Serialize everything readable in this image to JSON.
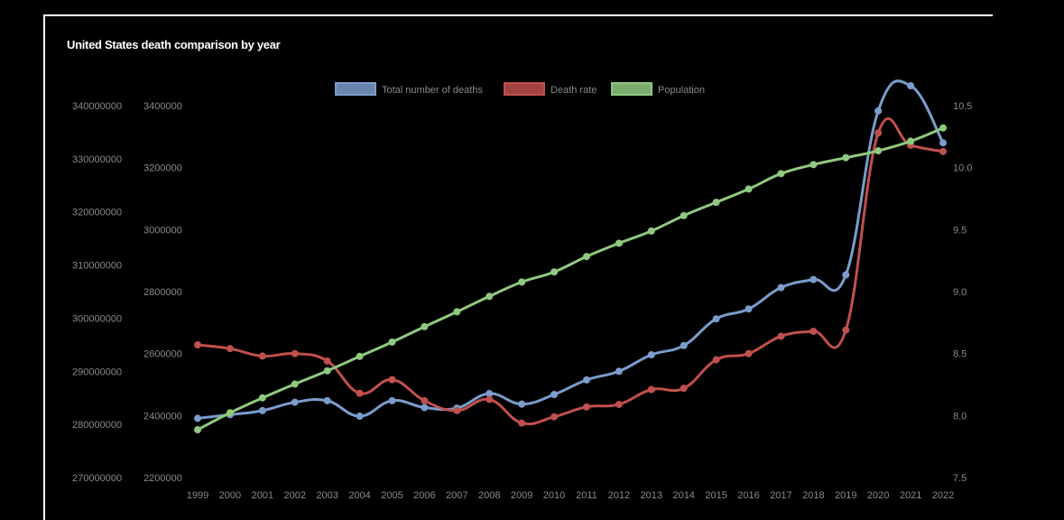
{
  "chart_data": {
    "type": "line",
    "title": "United States death comparison by year",
    "categories": [
      "1999",
      "2000",
      "2001",
      "2002",
      "2003",
      "2004",
      "2005",
      "2006",
      "2007",
      "2008",
      "2009",
      "2010",
      "2011",
      "2012",
      "2013",
      "2014",
      "2015",
      "2016",
      "2017",
      "2018",
      "2019",
      "2020",
      "2021",
      "2022"
    ],
    "axes": {
      "population": {
        "ticks": [
          "340000000",
          "330000000",
          "320000000",
          "310000000",
          "300000000",
          "290000000",
          "280000000",
          "270000000"
        ],
        "range": [
          270000000,
          340000000
        ],
        "position": "far-left"
      },
      "deaths": {
        "ticks": [
          "3400000",
          "3200000",
          "3000000",
          "2800000",
          "2600000",
          "2400000",
          "2200000"
        ],
        "range": [
          2200000,
          3400000
        ],
        "position": "left"
      },
      "rate": {
        "ticks": [
          "10.5",
          "10.0",
          "9.5",
          "9.0",
          "8.5",
          "8.0",
          "7.5"
        ],
        "range": [
          7.5,
          10.5
        ],
        "position": "right"
      }
    },
    "legend_position": "top",
    "grid": false,
    "series": [
      {
        "name": "Total number of deaths",
        "axis": "deaths",
        "color": "#7b9ccc",
        "values": [
          2391000,
          2403000,
          2416000,
          2443000,
          2448000,
          2398000,
          2448000,
          2426000,
          2424000,
          2471000,
          2437000,
          2468000,
          2515000,
          2543000,
          2596000,
          2626000,
          2712000,
          2744000,
          2813000,
          2839000,
          2854000,
          3383000,
          3464000,
          3280000
        ]
      },
      {
        "name": "Death rate",
        "axis": "rate",
        "color": "#c0504d",
        "values": [
          8.57,
          8.54,
          8.48,
          8.5,
          8.44,
          8.18,
          8.29,
          8.12,
          8.04,
          8.13,
          7.94,
          7.99,
          8.07,
          8.09,
          8.21,
          8.22,
          8.45,
          8.5,
          8.64,
          8.68,
          8.69,
          10.28,
          10.18,
          10.13
        ]
      },
      {
        "name": "Population",
        "axis": "population",
        "color": "#8fc97f",
        "values": [
          279000000,
          282200000,
          285000000,
          287600000,
          290100000,
          292800000,
          295500000,
          298400000,
          301200000,
          304100000,
          306800000,
          308700000,
          311600000,
          314100000,
          316400000,
          319300000,
          321800000,
          324300000,
          327200000,
          328900000,
          330200000,
          331500000,
          333300000,
          335800000
        ]
      }
    ]
  }
}
